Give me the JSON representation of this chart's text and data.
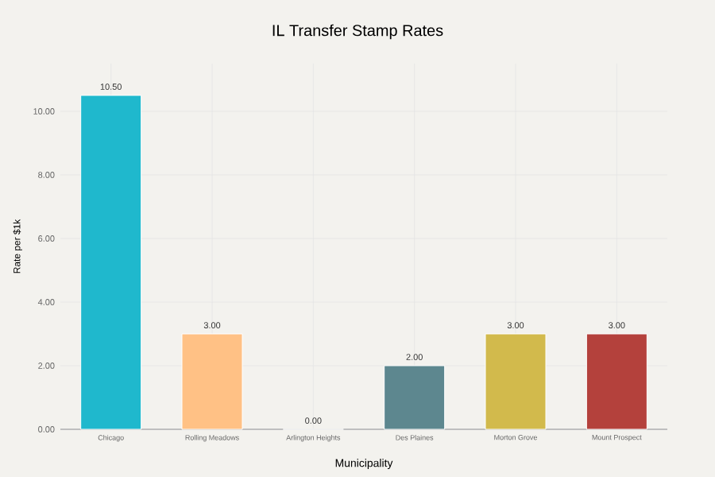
{
  "chart_data": {
    "type": "bar",
    "title": "IL Transfer Stamp Rates",
    "xlabel": "Municipality",
    "ylabel": "Rate per $1k",
    "categories": [
      "Chicago",
      "Rolling Meadows",
      "Arlington Heights",
      "Des Plaines",
      "Morton Grove",
      "Mount Prospect"
    ],
    "values": [
      10.5,
      3,
      0,
      2,
      3,
      3
    ],
    "colors": [
      "#1fb8cd",
      "#ffc185",
      "#eceae1",
      "#5d878f",
      "#d2ba4c",
      "#b4413c"
    ],
    "value_labels": [
      "10.50",
      "3.00",
      "0.00",
      "2.00",
      "3.00",
      "3.00"
    ],
    "ylim": [
      0,
      11.5
    ],
    "yticks": [
      {
        "value": 0,
        "label": "0.00"
      },
      {
        "value": 2,
        "label": "2.00"
      },
      {
        "value": 4,
        "label": "4.00"
      },
      {
        "value": 6,
        "label": "6.00"
      },
      {
        "value": 8,
        "label": "8.00"
      },
      {
        "value": 10,
        "label": "10.00"
      }
    ],
    "grid": true
  }
}
